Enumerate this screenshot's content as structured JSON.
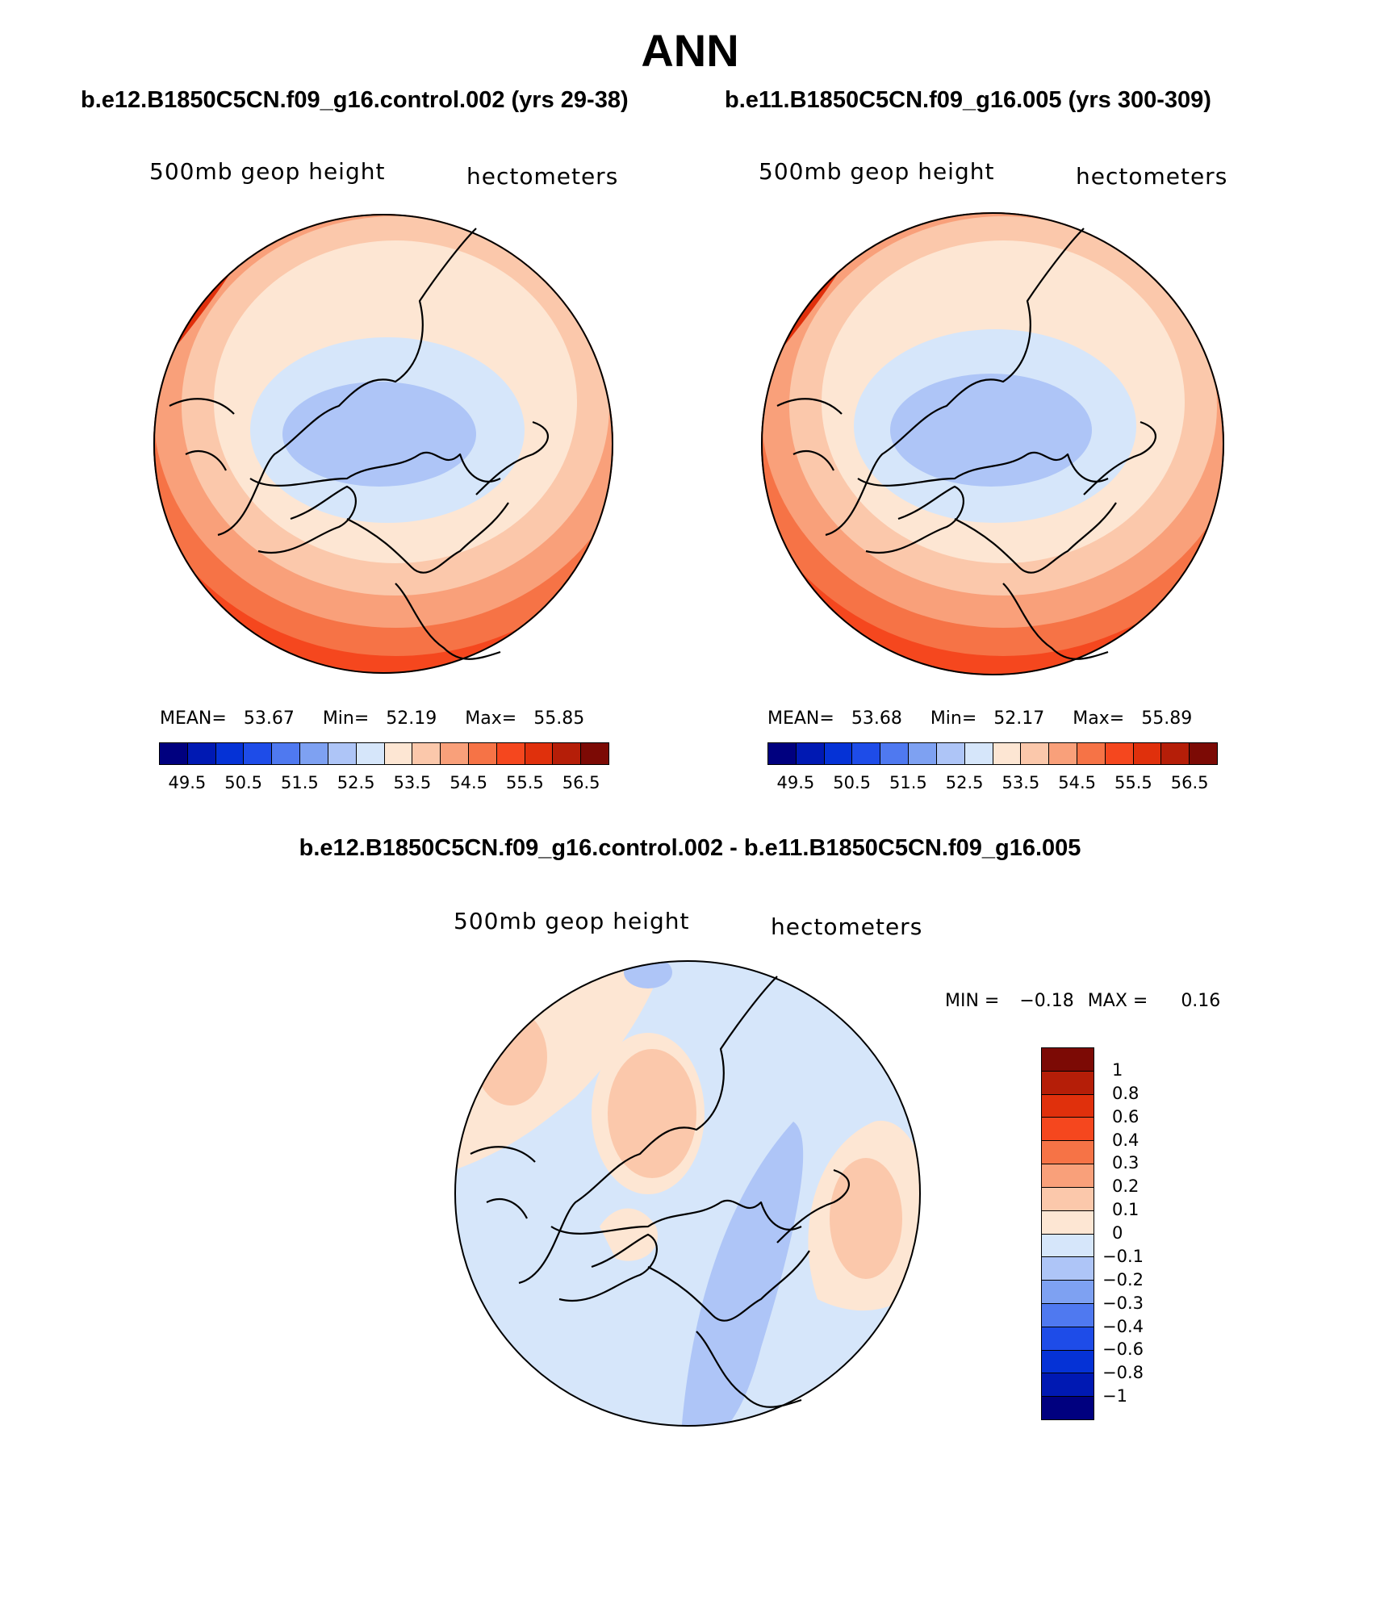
{
  "title": "ANN",
  "panels": {
    "left": {
      "case": "b.e12.B1850C5CN.f09_g16.control.002 (yrs 29-38)",
      "variable": "500mb geop height",
      "units": "hectometers",
      "stats": {
        "mean_label": "MEAN=",
        "mean": "53.67",
        "min_label": "Min=",
        "min": "52.19",
        "max_label": "Max=",
        "max": "55.85"
      }
    },
    "right": {
      "case": "b.e11.B1850C5CN.f09_g16.005 (yrs 300-309)",
      "variable": "500mb geop height",
      "units": "hectometers",
      "stats": {
        "mean_label": "MEAN=",
        "mean": "53.68",
        "min_label": "Min=",
        "min": "52.17",
        "max_label": "Max=",
        "max": "55.89"
      }
    },
    "diff": {
      "title": "b.e12.B1850C5CN.f09_g16.control.002 - b.e11.B1850C5CN.f09_g16.005",
      "variable": "500mb geop height",
      "units": "hectometers",
      "stats": {
        "min_label": "MIN =",
        "min": "−0.18",
        "max_label": "MAX =",
        "max": "0.16"
      }
    }
  },
  "colorbars": {
    "field": {
      "ticks": [
        "49.5",
        "50.5",
        "51.5",
        "52.5",
        "53.5",
        "54.5",
        "55.5",
        "56.5"
      ],
      "colors": [
        "#00007f",
        "#0019b3",
        "#0532d6",
        "#1e4ce8",
        "#4f79f0",
        "#7ea1f2",
        "#aec5f7",
        "#d6e6fa",
        "#fde6d3",
        "#fbc8ab",
        "#f9a07a",
        "#f67346",
        "#f5471e",
        "#e0300c",
        "#b51e08",
        "#7c0a05"
      ]
    },
    "diff": {
      "ticks": [
        "1",
        "0.8",
        "0.6",
        "0.4",
        "0.3",
        "0.2",
        "0.1",
        "0",
        "−0.1",
        "−0.2",
        "−0.3",
        "−0.4",
        "−0.6",
        "−0.8",
        "−1"
      ],
      "colors": [
        "#7c0a05",
        "#b51e08",
        "#e0300c",
        "#f5471e",
        "#f67346",
        "#f9a07a",
        "#fbc8ab",
        "#fde6d3",
        "#d6e6fa",
        "#aec5f7",
        "#7ea1f2",
        "#4f79f0",
        "#1e4ce8",
        "#0532d6",
        "#0019b3",
        "#00007f"
      ]
    }
  }
}
